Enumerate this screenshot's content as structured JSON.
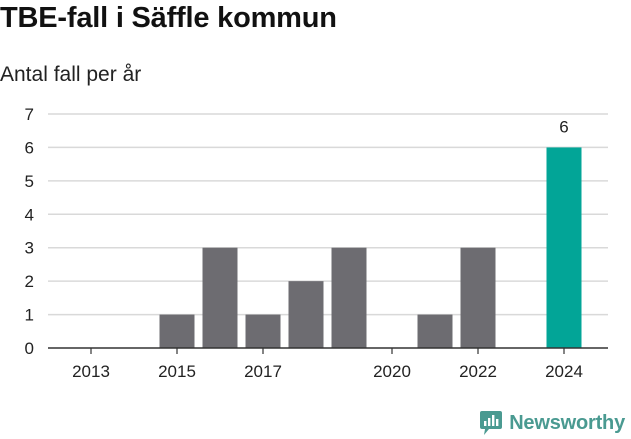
{
  "header": {
    "title": "TBE-fall i Säffle kommun",
    "subtitle": "Antal fall per år"
  },
  "brand": {
    "name": "Newsworthy",
    "icon": "newsworthy-logo-icon",
    "color": "#4a9a91"
  },
  "colors": {
    "bar": "#6d6c71",
    "highlight": "#02a597",
    "grid": "#d9d9d9",
    "axis": "#333333",
    "text": "#222222"
  },
  "chart_data": {
    "type": "bar",
    "title": "TBE-fall i Säffle kommun",
    "subtitle": "Antal fall per år",
    "xlabel": "",
    "ylabel": "",
    "categories": [
      "2013",
      "2014",
      "2015",
      "2016",
      "2017",
      "2018",
      "2019",
      "2020",
      "2021",
      "2022",
      "2023",
      "2024"
    ],
    "values": [
      0,
      0,
      1,
      3,
      1,
      2,
      3,
      0,
      1,
      3,
      0,
      6
    ],
    "highlight_category": "2024",
    "x_tick_labels": [
      "2013",
      "2015",
      "2017",
      "2020",
      "2022",
      "2024"
    ],
    "y_ticks": [
      0,
      1,
      2,
      3,
      4,
      5,
      6,
      7
    ],
    "ylim": [
      0,
      7
    ],
    "grid": true,
    "legend": "none",
    "data_labels": [
      {
        "category": "2024",
        "text": "6"
      }
    ]
  }
}
